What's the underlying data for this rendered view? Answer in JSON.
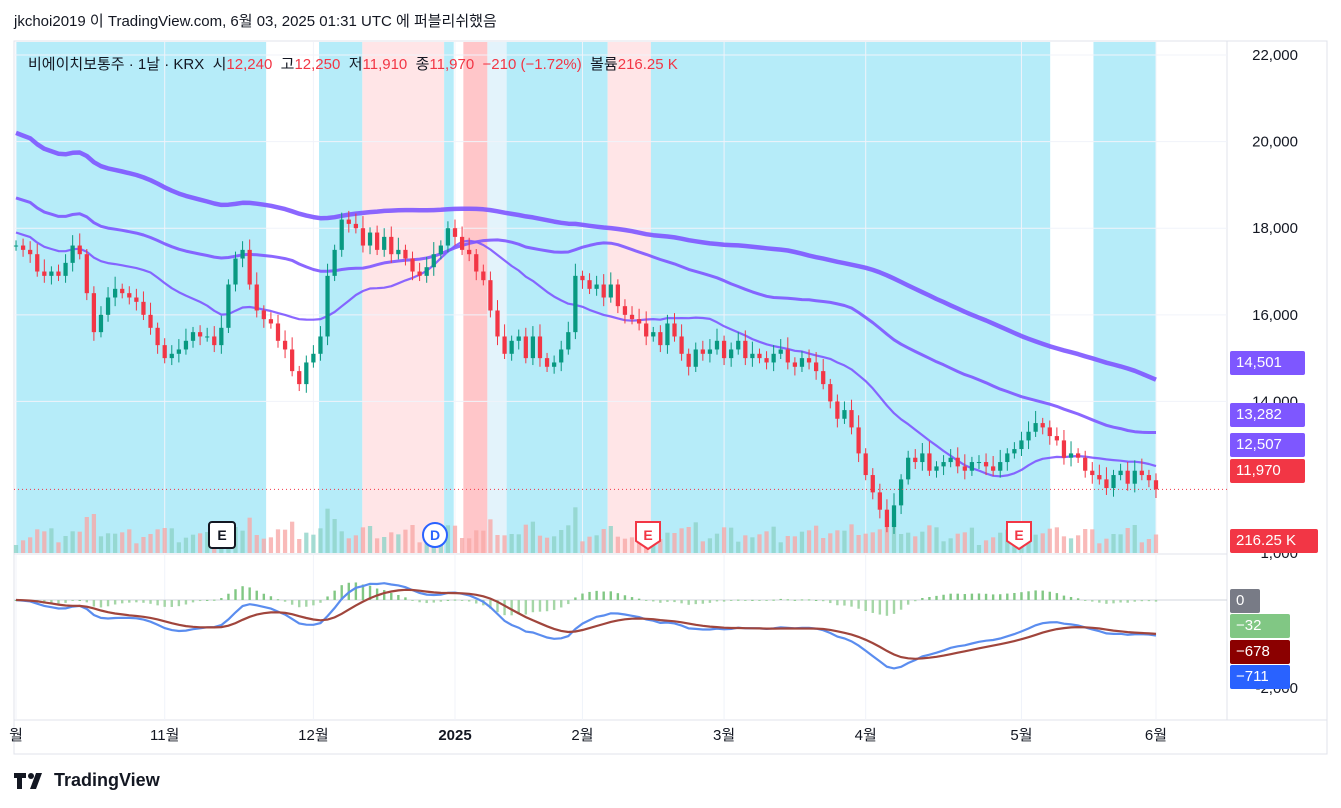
{
  "header": {
    "publish_line": "jkchoi2019 이 TradingView.com, 6월 03, 2025 01:31 UTC 에 퍼블리쉬했음"
  },
  "legend": {
    "symbol": "비에이치보통주 · 1날 · KRX",
    "open_label": "시",
    "open": "12,240",
    "high_label": "고",
    "high": "12,250",
    "low_label": "저",
    "low": "11,910",
    "close_label": "종",
    "close": "11,970",
    "change": "−210 (−1.72%)",
    "volume_label": "볼륨",
    "volume": "216.25 K"
  },
  "footer": {
    "brand": "TradingView"
  },
  "price_badges": [
    {
      "text": "14,501",
      "color": "#7e57ff"
    },
    {
      "text": "13,282",
      "color": "#7e57ff"
    },
    {
      "text": "12,507",
      "color": "#7e57ff"
    },
    {
      "text": "11,970",
      "color": "#f23645"
    },
    {
      "text": "216.25 K",
      "color": "#f23645"
    }
  ],
  "macd_badges": [
    {
      "text": "0",
      "color": "#787b86"
    },
    {
      "text": "−32",
      "color": "#81c784"
    },
    {
      "text": "−678",
      "color": "#8b0000"
    },
    {
      "text": "−711",
      "color": "#2962ff"
    }
  ],
  "event_markers": [
    {
      "label": "E",
      "kind": "earnings"
    },
    {
      "label": "D",
      "kind": "dividend"
    },
    {
      "label": "E",
      "kind": "earnings"
    },
    {
      "label": "E",
      "kind": "earnings"
    }
  ],
  "chart_data": {
    "type": "line",
    "title": "비에이치보통주 · 1날 · KRX",
    "price_axis": {
      "ticks": [
        22000,
        20000,
        18000,
        16000,
        14000
      ],
      "ylim": [
        10500,
        22300
      ]
    },
    "macd_axis": {
      "ticks": [
        1000,
        -2000
      ]
    },
    "time_axis": {
      "labels": [
        "월",
        "11월",
        "12월",
        "2025",
        "2월",
        "3월",
        "4월",
        "5월",
        "6월"
      ]
    },
    "candles": {
      "dates": [
        "2024-10-01",
        "2024-10-02",
        "2024-10-04",
        "2024-10-07",
        "2024-10-08",
        "2024-10-10",
        "2024-10-11",
        "2024-10-14",
        "2024-10-15",
        "2024-10-16",
        "2024-10-17",
        "2024-10-18",
        "2024-10-21",
        "2024-10-22",
        "2024-10-23",
        "2024-10-24",
        "2024-10-25",
        "2024-10-28",
        "2024-10-29",
        "2024-10-30",
        "2024-10-31",
        "2024-11-01",
        "2024-11-04",
        "2024-11-05",
        "2024-11-06",
        "2024-11-07",
        "2024-11-08",
        "2024-11-11",
        "2024-11-12",
        "2024-11-13",
        "2024-11-14",
        "2024-11-15",
        "2024-11-18",
        "2024-11-19",
        "2024-11-20",
        "2024-11-21",
        "2024-11-22",
        "2024-11-25",
        "2024-11-26",
        "2024-11-27",
        "2024-11-28",
        "2024-11-29",
        "2024-12-02",
        "2024-12-03",
        "2024-12-04",
        "2024-12-05",
        "2024-12-06",
        "2024-12-09",
        "2024-12-10",
        "2024-12-11",
        "2024-12-12",
        "2024-12-13",
        "2024-12-16",
        "2024-12-17",
        "2024-12-18",
        "2024-12-19",
        "2024-12-20",
        "2024-12-23",
        "2024-12-24",
        "2024-12-26",
        "2024-12-27",
        "2024-12-30",
        "2025-01-02",
        "2025-01-03",
        "2025-01-06",
        "2025-01-07",
        "2025-01-08",
        "2025-01-09",
        "2025-01-10",
        "2025-01-13",
        "2025-01-14",
        "2025-01-15",
        "2025-01-16",
        "2025-01-17",
        "2025-01-20",
        "2025-01-21",
        "2025-01-22",
        "2025-01-23",
        "2025-01-24",
        "2025-01-31",
        "2025-02-03",
        "2025-02-04",
        "2025-02-05",
        "2025-02-06",
        "2025-02-07",
        "2025-02-10",
        "2025-02-11",
        "2025-02-12",
        "2025-02-13",
        "2025-02-14",
        "2025-02-17",
        "2025-02-18",
        "2025-02-19",
        "2025-02-20",
        "2025-02-21",
        "2025-02-24",
        "2025-02-25",
        "2025-02-26",
        "2025-02-27",
        "2025-02-28",
        "2025-03-04",
        "2025-03-05",
        "2025-03-06",
        "2025-03-07",
        "2025-03-10",
        "2025-03-11",
        "2025-03-12",
        "2025-03-13",
        "2025-03-14",
        "2025-03-17",
        "2025-03-18",
        "2025-03-19",
        "2025-03-20",
        "2025-03-21",
        "2025-03-24",
        "2025-03-25",
        "2025-03-26",
        "2025-03-27",
        "2025-03-28",
        "2025-03-31",
        "2025-04-01",
        "2025-04-02",
        "2025-04-03",
        "2025-04-04",
        "2025-04-07",
        "2025-04-08",
        "2025-04-09",
        "2025-04-10",
        "2025-04-11",
        "2025-04-14",
        "2025-04-15",
        "2025-04-16",
        "2025-04-17",
        "2025-04-18",
        "2025-04-21",
        "2025-04-22",
        "2025-04-23",
        "2025-04-24",
        "2025-04-25",
        "2025-04-28",
        "2025-04-29",
        "2025-04-30",
        "2025-05-02",
        "2025-05-07",
        "2025-05-08",
        "2025-05-09",
        "2025-05-12",
        "2025-05-13",
        "2025-05-14",
        "2025-05-15",
        "2025-05-16",
        "2025-05-19",
        "2025-05-20",
        "2025-05-21",
        "2025-05-22",
        "2025-05-23",
        "2025-05-26",
        "2025-05-27",
        "2025-05-28",
        "2025-05-29",
        "2025-05-30",
        "2025-06-02"
      ],
      "close": [
        17600,
        17500,
        17400,
        17000,
        16900,
        17000,
        16900,
        17200,
        17600,
        17400,
        16500,
        15600,
        16000,
        16400,
        16600,
        16500,
        16400,
        16300,
        16000,
        15700,
        15300,
        15000,
        15100,
        15200,
        15400,
        15600,
        15500,
        15500,
        15300,
        15700,
        16700,
        17300,
        17500,
        16700,
        16100,
        15900,
        15800,
        15400,
        15200,
        14700,
        14400,
        14900,
        15100,
        15500,
        16900,
        17500,
        18200,
        18100,
        18000,
        17600,
        17900,
        17500,
        17800,
        17400,
        17500,
        17300,
        17000,
        16900,
        17100,
        17400,
        17600,
        18000,
        17800,
        17500,
        17400,
        17000,
        16800,
        16100,
        15500,
        15100,
        15400,
        15500,
        15000,
        15500,
        15000,
        14800,
        14900,
        15200,
        15600,
        16900,
        16800,
        16600,
        16700,
        16400,
        16700,
        16200,
        16000,
        15900,
        15800,
        15500,
        15600,
        15300,
        15800,
        15500,
        15100,
        14800,
        15200,
        15100,
        15200,
        15400,
        15000,
        15200,
        15400,
        15000,
        15100,
        15000,
        14900,
        15100,
        15200,
        14900,
        14800,
        15000,
        14900,
        14700,
        14400,
        14000,
        13600,
        13800,
        13400,
        12800,
        12300,
        11900,
        11500,
        11100,
        11600,
        12200,
        12700,
        12600,
        12800,
        12400,
        12500,
        12600,
        12700,
        12500,
        12400,
        12600,
        12600,
        12500,
        12400,
        12600,
        12800,
        12900,
        13100,
        13300,
        13500,
        13400,
        13200,
        13100,
        12700,
        12800,
        12700,
        12400,
        12300,
        12200,
        12000,
        12300,
        12400,
        12100,
        12400,
        12300,
        12180,
        11970
      ]
    },
    "moving_averages": [
      {
        "color": "#7e57ff",
        "last_value": 14501
      },
      {
        "color": "#7e57ff",
        "last_value": 13282
      },
      {
        "color": "#7e57ff",
        "last_value": 12507
      }
    ],
    "macd": {
      "macd_last": -711,
      "signal_last": -678,
      "hist_last": -32,
      "zero": 0
    }
  }
}
